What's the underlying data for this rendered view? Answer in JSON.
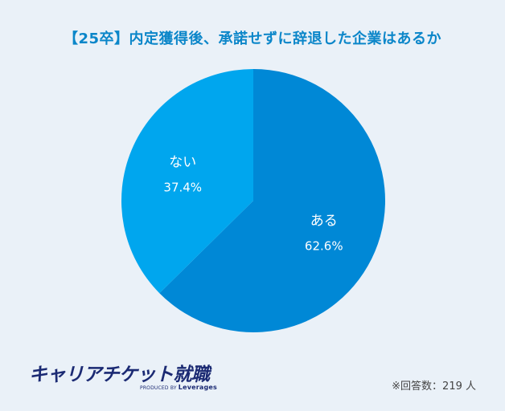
{
  "chart_data": {
    "type": "pie",
    "title": "【25卒】内定獲得後、承諾せずに辞退した企業はあるか",
    "slices": [
      {
        "label": "ある",
        "value": 62.6,
        "display": "62.6%"
      },
      {
        "label": "ない",
        "value": 37.4,
        "display": "37.4%"
      }
    ]
  },
  "colors": {
    "background": "#eaf1f8",
    "title": "#0b86c9",
    "slice_aru": "#0088d6",
    "slice_nai": "#00a6ee",
    "label_text": "#ffffff",
    "logo": "#1b2a73"
  },
  "logo": {
    "main": "キャリアチケット就職",
    "produced_by": "PRODUCED BY",
    "company": "Leverages"
  },
  "footnote": "※回答数：219 人"
}
